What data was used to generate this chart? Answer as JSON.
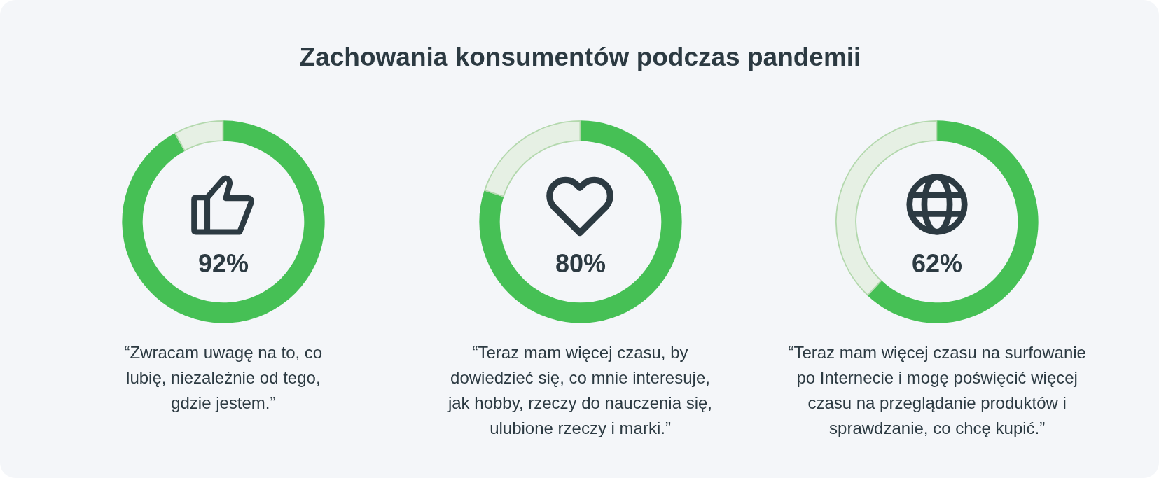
{
  "chart_data": [
    {
      "type": "donut",
      "categories": [
        null,
        null
      ],
      "values": [
        92,
        8
      ],
      "colors": [
        "#46c055",
        "#e6f0e4"
      ],
      "value_labels": [
        "92%",
        null
      ],
      "annotations": [
        "“Zwracam uwagę na to, co lubię, niezależnie od tego, gdzie jestem.”"
      ]
    },
    {
      "type": "donut",
      "title": "Zachowania konsumentów podczas pandemii",
      "categories": [
        null,
        null
      ],
      "values": [
        80,
        20
      ],
      "colors": [
        "#46c055",
        "#e6f0e4"
      ],
      "value_labels": [
        "80%",
        null
      ],
      "annotations": [
        "“Teraz mam więcej czasu, by dowiedzieć się, co mnie interesuje, jak hobby, rzeczy do nauczenia się, ulubione rzeczy i marki.”"
      ]
    },
    {
      "type": "donut",
      "categories": [
        null,
        null
      ],
      "values": [
        62,
        38
      ],
      "colors": [
        "#46c055",
        "#e6f0e4"
      ],
      "value_labels": [
        "62%",
        null
      ],
      "annotations": [
        "“Teraz mam więcej czasu na surfowanie po Internecie i mogę poświęcić więcej czasu na przeglądanie produktów i sprawdzanie, co chcę kupić.”"
      ]
    }
  ]
}
